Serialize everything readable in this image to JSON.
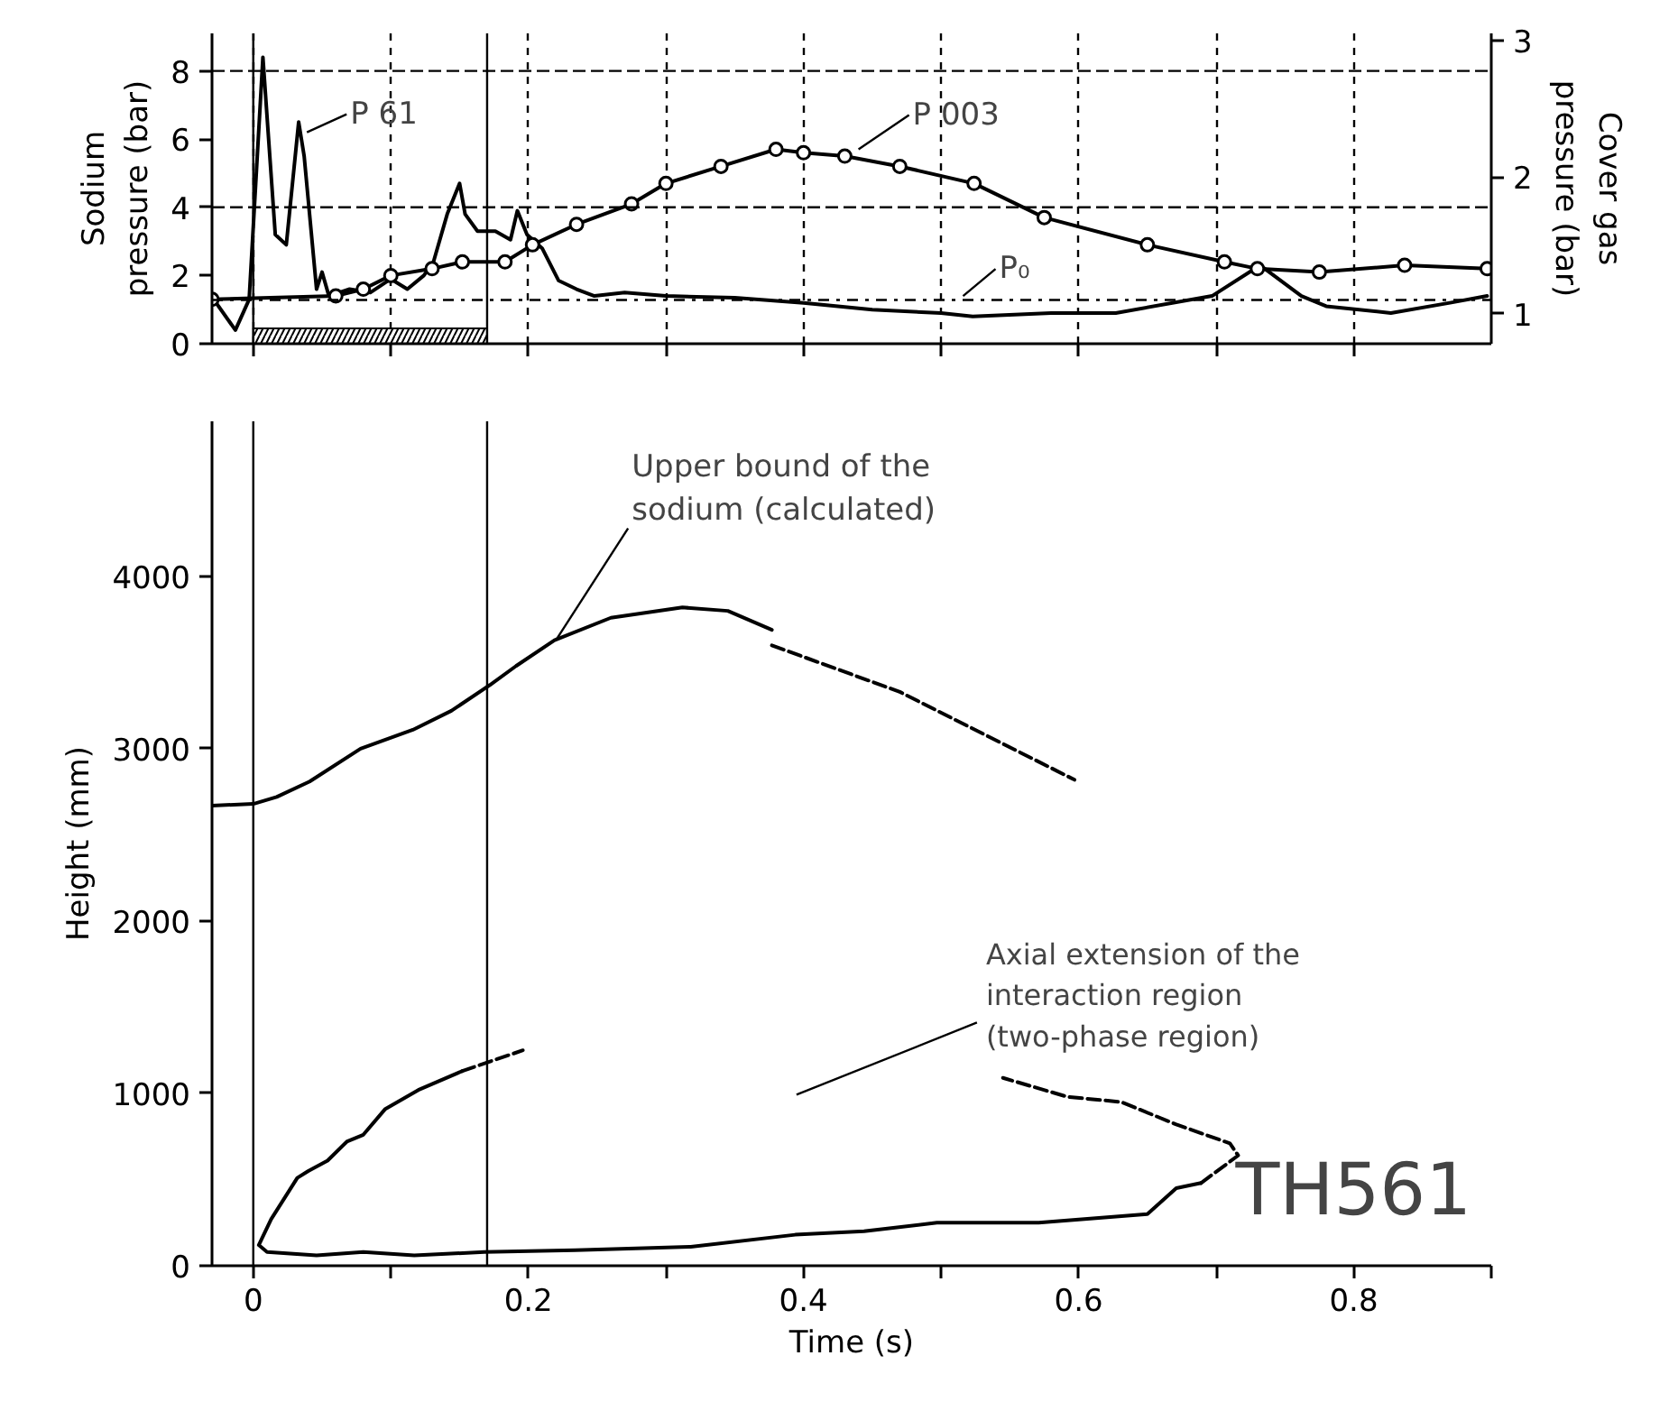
{
  "chart_data": [
    {
      "type": "line",
      "ylabel": "Sodium\npressure (bar)",
      "y2label": "Cover gas\npressure (bar)",
      "xlim": [
        -0.03,
        0.9
      ],
      "xticks": [
        {
          "value": 0,
          "label": null
        },
        {
          "value": 0.1,
          "label": null
        },
        {
          "value": 0.2,
          "label": null
        },
        {
          "value": 0.3,
          "label": null
        },
        {
          "value": 0.4,
          "label": null
        },
        {
          "value": 0.5,
          "label": null
        },
        {
          "value": 0.6,
          "label": null
        },
        {
          "value": 0.7,
          "label": null
        },
        {
          "value": 0.8,
          "label": null
        }
      ],
      "ylim": [
        0,
        9.1
      ],
      "yticks": [
        0,
        2,
        4,
        6,
        8
      ],
      "y2lim": [
        0.78,
        3.05
      ],
      "y2ticks": [
        1,
        2,
        3
      ],
      "tick_labels": "y",
      "grid": "x",
      "series": [
        {
          "color": "#000000",
          "x": [
            -0.03,
            -0.013,
            -0.003,
            0.007,
            0.016,
            0.024,
            0.033,
            0.037,
            0.046,
            0.05,
            0.055,
            0.07,
            0.085,
            0.1,
            0.112,
            0.124,
            0.131,
            0.141,
            0.15,
            0.154,
            0.163,
            0.176,
            0.187,
            0.192,
            0.199,
            0.21,
            0.222,
            0.235,
            0.248,
            0.27,
            0.3,
            0.35,
            0.4,
            0.45,
            0.5,
            0.523,
            0.58,
            0.627,
            0.697,
            0.732,
            0.762,
            0.78,
            0.827,
            0.87,
            0.897
          ],
          "values": [
            1.37,
            0.4,
            1.3,
            8.4,
            3.2,
            2.9,
            6.5,
            5.5,
            1.6,
            2.1,
            1.4,
            1.6,
            1.5,
            1.9,
            1.6,
            2.0,
            2.4,
            3.8,
            4.7,
            3.8,
            3.3,
            3.3,
            3.05,
            3.9,
            3.2,
            2.8,
            1.85,
            1.6,
            1.4,
            1.5,
            1.4,
            1.35,
            1.2,
            1.0,
            0.9,
            0.8,
            0.9,
            0.9,
            1.4,
            2.3,
            1.4,
            1.1,
            0.9,
            1.2,
            1.4
          ]
        },
        {
          "color": "#000000",
          "marker": "circle",
          "x": [
            -0.03,
            0.06,
            0.08,
            0.1,
            0.13,
            0.152,
            0.183,
            0.203,
            0.235,
            0.275,
            0.3,
            0.34,
            0.38,
            0.4,
            0.43,
            0.47,
            0.524,
            0.575,
            0.65,
            0.706,
            0.73,
            0.775,
            0.837,
            0.897
          ],
          "values": [
            1.3,
            1.4,
            1.6,
            2.0,
            2.2,
            2.4,
            2.4,
            2.9,
            3.5,
            4.1,
            4.7,
            5.2,
            5.7,
            5.6,
            5.5,
            5.2,
            4.7,
            3.7,
            2.9,
            2.4,
            2.2,
            2.1,
            2.3,
            2.2
          ]
        },
        {
          "type": "area",
          "color": "#000000",
          "x": [
            0,
            0.17
          ],
          "values": [
            0.45,
            0.45
          ]
        }
      ],
      "ref_lines": [
        {
          "axis": "x",
          "value": 0,
          "color": "#000000",
          "line_style": "solid"
        },
        {
          "axis": "x",
          "value": 0.17,
          "color": "#000000",
          "line_style": "solid"
        },
        {
          "axis": "y",
          "value": 4,
          "color": "#000000",
          "line_style": "dashed"
        },
        {
          "axis": "y",
          "value": 8,
          "color": "#000000",
          "line_style": "dashed"
        },
        {
          "axis": "y2",
          "value": 1.1,
          "color": "#000000",
          "line_style": "dashdot"
        }
      ],
      "annotations": [
        {
          "text": "P 61",
          "x": 0.039,
          "y": 6.2
        },
        {
          "text": "P 003",
          "x": 0.44,
          "y": 5.7
        },
        {
          "text": "P₀",
          "x": 0.516,
          "y": 1.4
        }
      ]
    },
    {
      "type": "line",
      "xlabel": "Time (s)",
      "ylabel": "Height (mm)",
      "xlim": [
        -0.03,
        0.9
      ],
      "xticks": [
        0,
        {
          "value": 0.1,
          "label": null
        },
        0.2,
        {
          "value": 0.3,
          "label": null
        },
        0.4,
        {
          "value": 0.5,
          "label": null
        },
        0.6,
        {
          "value": 0.7,
          "label": null
        },
        0.8,
        {
          "value": 0.9,
          "label": null
        }
      ],
      "ylim": [
        0,
        4900
      ],
      "yticks": [
        0,
        1000,
        2000,
        3000,
        4000
      ],
      "series": [
        {
          "color": "#000000",
          "line_style": "solid",
          "x": [
            -0.03,
            0,
            0.017,
            0.041,
            0.078,
            0.116,
            0.144,
            0.172,
            0.191,
            0.219,
            0.26,
            0.312,
            0.345,
            0.377
          ],
          "values": [
            2670,
            2680,
            2720,
            2810,
            3000,
            3110,
            3220,
            3370,
            3480,
            3630,
            3760,
            3820,
            3800,
            3690
          ]
        },
        {
          "color": "#000000",
          "line_style": "dashed",
          "x": [
            0.377,
            0.47,
            0.597
          ],
          "values": [
            3600,
            3330,
            2820
          ]
        },
        {
          "color": "#000000",
          "line_style": "solid",
          "x": [
            0.152,
            0.12,
            0.096,
            0.08,
            0.068,
            0.054,
            0.04,
            0.032,
            0.013,
            0.004,
            0.01,
            0.046,
            0.08,
            0.117,
            0.168,
            0.234,
            0.318,
            0.394,
            0.444,
            0.497,
            0.571,
            0.65,
            0.671,
            0.689
          ],
          "values": [
            1130,
            1020,
            910,
            760,
            720,
            610,
            550,
            510,
            270,
            120,
            80,
            60,
            80,
            60,
            80,
            90,
            110,
            180,
            200,
            250,
            250,
            300,
            450,
            480
          ]
        },
        {
          "color": "#000000",
          "line_style": "dashed",
          "x": [
            0.152,
            0.196
          ],
          "values": [
            1130,
            1250
          ]
        },
        {
          "color": "#000000",
          "line_style": "dashed",
          "x": [
            0.689,
            0.716,
            0.71,
            0.671,
            0.631,
            0.592,
            0.545
          ],
          "values": [
            480,
            640,
            710,
            820,
            950,
            980,
            1090
          ]
        }
      ],
      "ref_lines": [
        {
          "axis": "x",
          "value": 0,
          "color": "#000000",
          "line_style": "solid"
        },
        {
          "axis": "x",
          "value": 0.17,
          "color": "#000000",
          "line_style": "solid"
        }
      ],
      "annotations": [
        {
          "text": "Upper bound of the\nsodium (calculated)",
          "x": 0.22,
          "y": 3630
        },
        "Axial extension of the\ninteraction region\n(two-phase region)",
        "TH561"
      ]
    }
  ]
}
